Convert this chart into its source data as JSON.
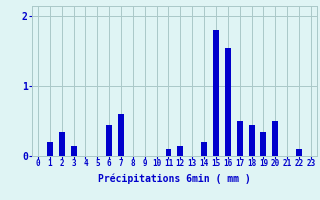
{
  "values": [
    0,
    0.2,
    0.35,
    0.15,
    0,
    0,
    0.45,
    0.6,
    0,
    0,
    0,
    0.1,
    0.15,
    0,
    0.2,
    1.8,
    1.55,
    0.5,
    0.45,
    0.35,
    0.5,
    0,
    0.1,
    0
  ],
  "xlabel": "Précipitations 6min ( mm )",
  "ylim": [
    0,
    2.15
  ],
  "yticks": [
    0,
    1,
    2
  ],
  "ytick_labels": [
    "0",
    "1",
    "2"
  ],
  "background_color": "#dff4f4",
  "bar_color": "#0000cc",
  "grid_color": "#aac8c8",
  "tick_color": "#0000cc",
  "label_color": "#0000cc",
  "xlabel_fontsize": 7,
  "xtick_fontsize": 5.5,
  "ytick_fontsize": 7
}
